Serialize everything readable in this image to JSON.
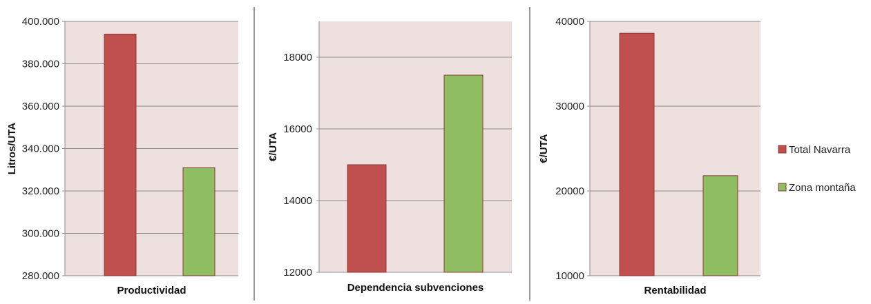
{
  "colors": {
    "plot_bg": "#efe0e0",
    "grid": "#8c8c8c",
    "axis": "#8c8c8c",
    "divider": "#9a9a9a"
  },
  "legend": [
    {
      "label": "Total Navarra",
      "color": "#c0504d",
      "border": "#8c3836"
    },
    {
      "label": "Zona montaña",
      "color": "#8fbe62",
      "border": "#8c3836"
    }
  ],
  "chart_data": [
    {
      "type": "bar",
      "xlabel": "Productividad",
      "ylabel": "Litros/UTA",
      "ylim": [
        280000,
        400000
      ],
      "yticks": [
        280000,
        300000,
        320000,
        340000,
        360000,
        380000,
        400000
      ],
      "ytick_labels": [
        "280.000",
        "300.000",
        "320.000",
        "340.000",
        "360.000",
        "380.000",
        "400.000"
      ],
      "series": [
        {
          "name": "Total Navarra",
          "values": [
            394000
          ]
        },
        {
          "name": "Zona montaña",
          "values": [
            331000
          ]
        }
      ]
    },
    {
      "type": "bar",
      "xlabel": "Dependencia  subvenciones",
      "ylabel": "€/UTA",
      "ylim": [
        12000,
        19000
      ],
      "yticks": [
        12000,
        14000,
        16000,
        18000
      ],
      "ytick_labels": [
        "12000",
        "14000",
        "16000",
        "18000"
      ],
      "series": [
        {
          "name": "Total Navarra",
          "values": [
            15000
          ]
        },
        {
          "name": "Zona montaña",
          "values": [
            17500
          ]
        }
      ]
    },
    {
      "type": "bar",
      "xlabel": "Rentabilidad",
      "ylabel": "€/UTA",
      "ylim": [
        10000,
        40000
      ],
      "yticks": [
        10000,
        20000,
        30000,
        40000
      ],
      "ytick_labels": [
        "10000",
        "20000",
        "30000",
        "40000"
      ],
      "series": [
        {
          "name": "Total Navarra",
          "values": [
            38600
          ]
        },
        {
          "name": "Zona montaña",
          "values": [
            21800
          ]
        }
      ]
    }
  ]
}
